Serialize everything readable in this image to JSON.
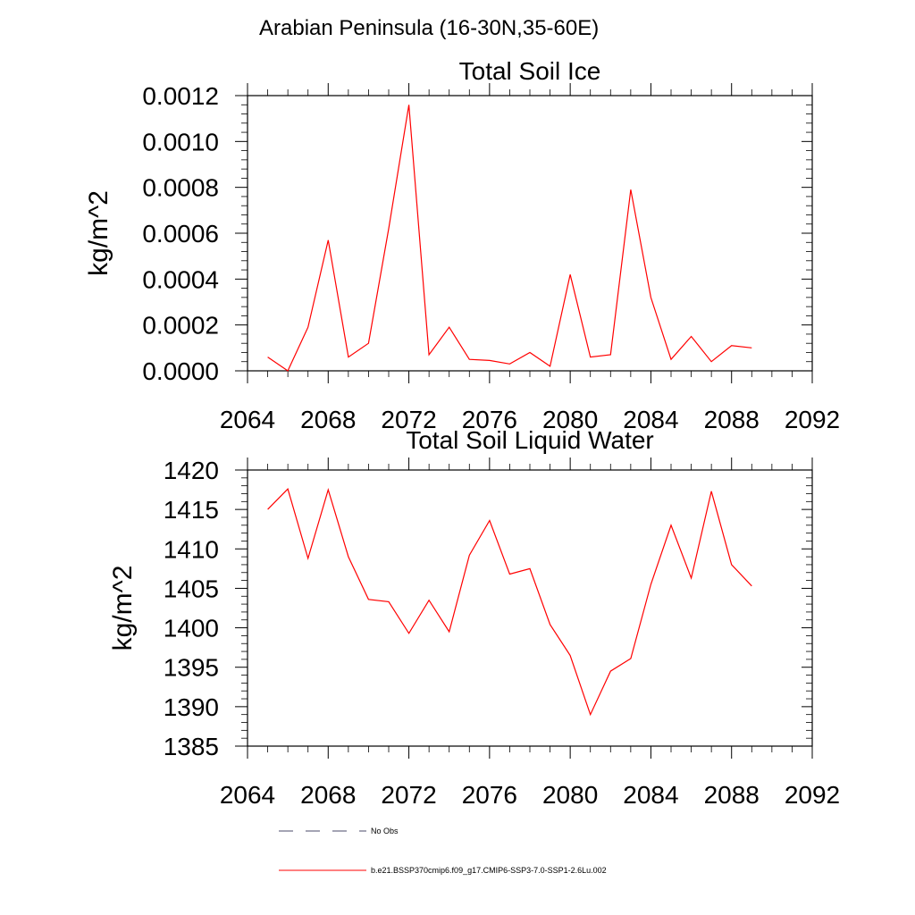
{
  "figure": {
    "super_title": "Arabian Peninsula (16-30N,35-60E)"
  },
  "legend": {
    "items": [
      {
        "label": "No Obs",
        "color": "#4a4a6a",
        "style": "dashed"
      },
      {
        "label": "b.e21.BSSP370cmip6.f09_g17.CMIP6-SSP3-7.0-SSP1-2.6Lu.002",
        "color": "#ff0000",
        "style": "solid"
      }
    ]
  },
  "chart_data": [
    {
      "type": "line",
      "title": "Total Soil Ice",
      "xlabel": "",
      "ylabel": "kg/m^2",
      "xlim": [
        2064,
        2092
      ],
      "ylim": [
        0,
        0.0012
      ],
      "xticks": [
        "2064",
        "2068",
        "2072",
        "2076",
        "2080",
        "2084",
        "2088",
        "2092"
      ],
      "yticks": [
        "0.0000",
        "0.0002",
        "0.0004",
        "0.0006",
        "0.0008",
        "0.0010",
        "0.0012"
      ],
      "grid": false,
      "series_color": "#ff0000",
      "x": [
        2065,
        2066,
        2067,
        2068,
        2069,
        2070,
        2071,
        2072,
        2073,
        2074,
        2075,
        2076,
        2077,
        2078,
        2079,
        2080,
        2081,
        2082,
        2083,
        2084,
        2085,
        2086,
        2087,
        2088,
        2089
      ],
      "y": [
        6e-05,
        0.0,
        0.00019,
        0.00057,
        6e-05,
        0.00012,
        0.00062,
        0.00116,
        7e-05,
        0.00019,
        5e-05,
        4.5e-05,
        3e-05,
        8e-05,
        2e-05,
        0.00042,
        6e-05,
        7e-05,
        0.00079,
        0.00032,
        5e-05,
        0.00015,
        4e-05,
        0.00011,
        0.0001
      ]
    },
    {
      "type": "line",
      "title": "Total Soil Liquid Water",
      "xlabel": "",
      "ylabel": "kg/m^2",
      "xlim": [
        2064,
        2092
      ],
      "ylim": [
        1385,
        1420
      ],
      "xticks": [
        "2064",
        "2068",
        "2072",
        "2076",
        "2080",
        "2084",
        "2088",
        "2092"
      ],
      "yticks": [
        "1385",
        "1390",
        "1395",
        "1400",
        "1405",
        "1410",
        "1415",
        "1420"
      ],
      "grid": false,
      "series_color": "#ff0000",
      "x": [
        2065,
        2066,
        2067,
        2068,
        2069,
        2070,
        2071,
        2072,
        2073,
        2074,
        2075,
        2076,
        2077,
        2078,
        2079,
        2080,
        2081,
        2082,
        2083,
        2084,
        2085,
        2086,
        2087,
        2088,
        2089
      ],
      "y": [
        1415,
        1417.6,
        1408.8,
        1417.5,
        1409,
        1403.6,
        1403.3,
        1399.3,
        1403.5,
        1399.5,
        1409.2,
        1413.6,
        1406.8,
        1407.5,
        1400.4,
        1396.5,
        1389,
        1394.5,
        1396.1,
        1405.5,
        1413,
        1406.3,
        1417.3,
        1408,
        1405.3
      ]
    }
  ]
}
